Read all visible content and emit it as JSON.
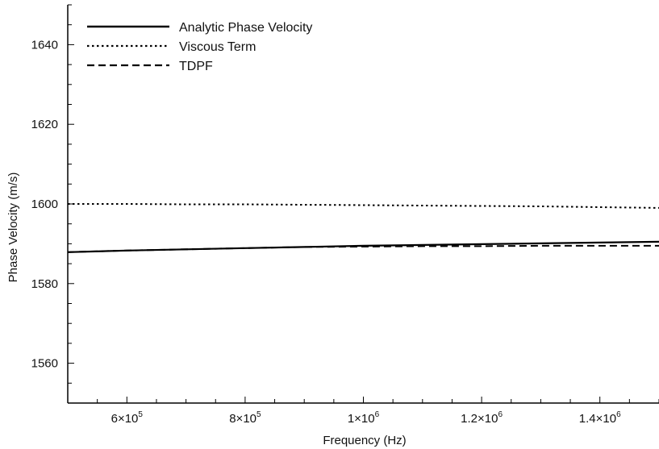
{
  "chart_data": {
    "type": "line",
    "title": "",
    "xlabel": "Frequency (Hz)",
    "ylabel": "Phase Velocity (m/s)",
    "xlim": [
      500000,
      1500000
    ],
    "ylim": [
      1550,
      1650
    ],
    "grid": false,
    "legend_position": "top-left",
    "x_ticks": [
      {
        "value": 600000,
        "mantissa": "6×10",
        "exp": "5"
      },
      {
        "value": 800000,
        "mantissa": "8×10",
        "exp": "5"
      },
      {
        "value": 1000000,
        "mantissa": "1×10",
        "exp": "6"
      },
      {
        "value": 1200000,
        "mantissa": "1.2×10",
        "exp": "6"
      },
      {
        "value": 1400000,
        "mantissa": "1.4×10",
        "exp": "6"
      }
    ],
    "y_ticks": [
      {
        "value": 1560,
        "label": "1560"
      },
      {
        "value": 1580,
        "label": "1580"
      },
      {
        "value": 1600,
        "label": "1600"
      },
      {
        "value": 1620,
        "label": "1620"
      },
      {
        "value": 1640,
        "label": "1640"
      }
    ],
    "series": [
      {
        "name": "Analytic Phase Velocity",
        "style": "solid",
        "color": "#000000",
        "x": [
          500000,
          600000,
          700000,
          800000,
          900000,
          1000000,
          1100000,
          1200000,
          1300000,
          1400000,
          1500000
        ],
        "y": [
          1587.9,
          1588.3,
          1588.6,
          1588.9,
          1589.2,
          1589.5,
          1589.7,
          1589.9,
          1590.1,
          1590.3,
          1590.5
        ]
      },
      {
        "name": "Viscous Term",
        "style": "dotted",
        "color": "#000000",
        "x": [
          500000,
          600000,
          700000,
          800000,
          900000,
          1000000,
          1100000,
          1200000,
          1300000,
          1400000,
          1500000
        ],
        "y": [
          1600.0,
          1600.0,
          1599.9,
          1599.9,
          1599.8,
          1599.7,
          1599.6,
          1599.5,
          1599.4,
          1599.2,
          1599.0
        ]
      },
      {
        "name": "TDPF",
        "style": "dashed",
        "color": "#000000",
        "x": [
          500000,
          600000,
          700000,
          800000,
          900000,
          1000000,
          1100000,
          1200000,
          1300000,
          1400000,
          1500000
        ],
        "y": [
          1587.9,
          1588.3,
          1588.6,
          1588.9,
          1589.2,
          1589.3,
          1589.4,
          1589.4,
          1589.5,
          1589.5,
          1589.5
        ]
      }
    ]
  }
}
